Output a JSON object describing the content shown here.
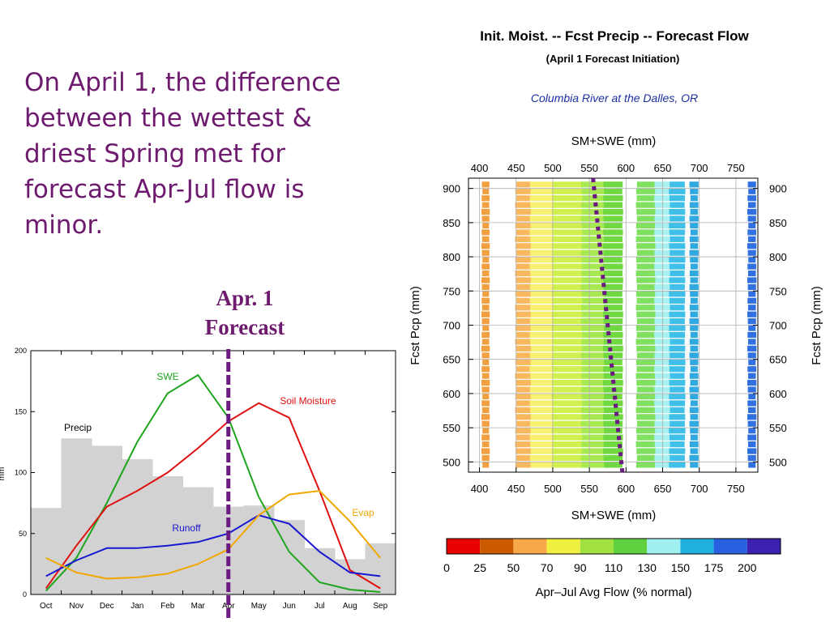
{
  "slide": {
    "body_text": "On April 1, the difference between the wettest & driest Spring met for forecast Apr-Jul flow is minor.",
    "apr_label_line1": "Apr. 1",
    "apr_label_line2": "Forecast"
  },
  "chart_data": [
    {
      "type": "line",
      "title": "",
      "xlabel": "",
      "ylabel": "mm",
      "ylim": [
        0,
        200
      ],
      "yticks": [
        0,
        50,
        100,
        150,
        200
      ],
      "categories": [
        "Oct",
        "Nov",
        "Dec",
        "Jan",
        "Feb",
        "Mar",
        "Apr",
        "May",
        "Jun",
        "Jul",
        "Aug",
        "Sep"
      ],
      "precip_bars": {
        "name": "Precip",
        "values": [
          71,
          128,
          122,
          111,
          97,
          88,
          72,
          73,
          61,
          38,
          29,
          42
        ]
      },
      "series": [
        {
          "name": "SWE",
          "color": "#1ea51e",
          "values": [
            3,
            30,
            75,
            125,
            165,
            180,
            145,
            80,
            35,
            10,
            4,
            2
          ]
        },
        {
          "name": "Soil Moisture",
          "color": "#e01010",
          "values": [
            5,
            40,
            72,
            85,
            100,
            120,
            142,
            157,
            145,
            85,
            20,
            5
          ]
        },
        {
          "name": "Runoff",
          "color": "#1818d0",
          "values": [
            15,
            28,
            38,
            38,
            40,
            43,
            50,
            65,
            58,
            35,
            18,
            15
          ]
        },
        {
          "name": "Evap",
          "color": "#f0a800",
          "values": [
            30,
            18,
            13,
            14,
            17,
            25,
            37,
            65,
            82,
            85,
            60,
            30
          ]
        }
      ],
      "forecast_marker": "Apr",
      "grid": false
    },
    {
      "type": "heatmap",
      "title": "Init. Moist. -- Fcst Precip -- Forecast Flow",
      "subtitle": "(April 1 Forecast Initiation)",
      "site": "Columbia River at the Dalles, OR",
      "xlabel": "SM+SWE (mm)",
      "ylabel": "Fcst Pcp (mm)",
      "xticks": [
        400,
        450,
        500,
        550,
        600,
        650,
        700,
        750
      ],
      "yticks": [
        500,
        550,
        600,
        650,
        700,
        750,
        800,
        850,
        900
      ],
      "xlim": [
        385,
        780
      ],
      "ylim": [
        485,
        915
      ],
      "grid": true,
      "colorbar": {
        "label": "Apr–Jul Avg Flow (% normal)",
        "ticks": [
          "0",
          "25",
          "50",
          "70",
          "90",
          "110",
          "130",
          "150",
          "175",
          "200"
        ],
        "colors": [
          "#e80000",
          "#cc5a00",
          "#f8a848",
          "#f0f040",
          "#a0e040",
          "#60d040",
          "#a0f0f0",
          "#20b0e0",
          "#2860e0",
          "#3c20b0"
        ]
      },
      "bands": [
        {
          "x_from": 404,
          "x_to": 413,
          "color": "#f0a040"
        },
        {
          "x_from": 450,
          "x_to": 470,
          "color": "#f8b860"
        },
        {
          "x_from": 470,
          "x_to": 500,
          "color": "#f8f070"
        },
        {
          "x_from": 500,
          "x_to": 540,
          "color": "#d0f050"
        },
        {
          "x_from": 540,
          "x_to": 570,
          "color": "#a8e850"
        },
        {
          "x_from": 570,
          "x_to": 595,
          "color": "#70d840"
        },
        {
          "x_from": 615,
          "x_to": 640,
          "color": "#80e060"
        },
        {
          "x_from": 640,
          "x_to": 660,
          "color": "#a8f0f0"
        },
        {
          "x_from": 660,
          "x_to": 680,
          "color": "#40c0e8"
        },
        {
          "x_from": 688,
          "x_to": 698,
          "color": "#30a8e0"
        },
        {
          "x_from": 767,
          "x_to": 777,
          "color": "#3070e0"
        }
      ],
      "dotted_line": {
        "color": "#6a1a80",
        "points": [
          [
            555,
            915
          ],
          [
            595,
            485
          ]
        ]
      }
    }
  ]
}
